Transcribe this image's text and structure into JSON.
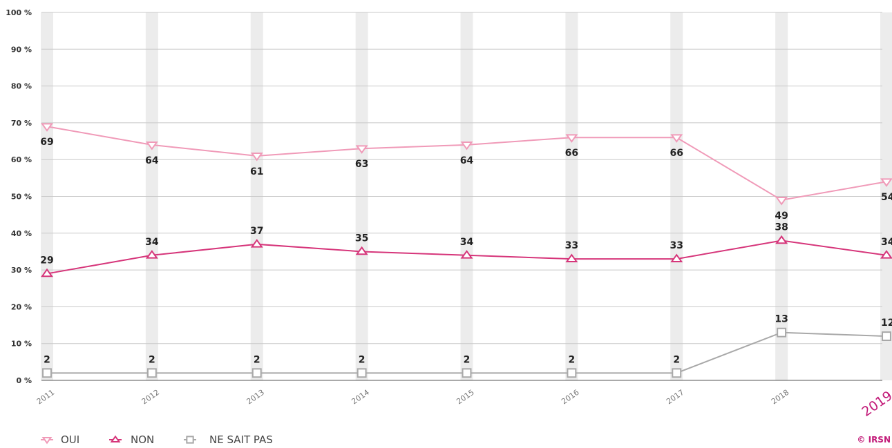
{
  "chart_data": {
    "type": "line",
    "x": [
      "2011",
      "2012",
      "2013",
      "2014",
      "2015",
      "2016",
      "2017",
      "2018",
      "2019"
    ],
    "highlight_x": "2019",
    "ylim": [
      0,
      100
    ],
    "yticks": [
      "0 %",
      "10 %",
      "20 %",
      "30 %",
      "40 %",
      "50 %",
      "60 %",
      "70 %",
      "80 %",
      "90 %",
      "100 %"
    ],
    "grid": true,
    "legend_position": "bottom-left",
    "series": [
      {
        "name": "OUI",
        "color": "#f09ab8",
        "marker": "triangle-down",
        "values": [
          69,
          64,
          61,
          63,
          64,
          66,
          66,
          49,
          54
        ],
        "labels": [
          "69",
          "64",
          "61",
          "63",
          "64",
          "66",
          "66",
          "49",
          "54"
        ],
        "label_position": "below"
      },
      {
        "name": "NON",
        "color": "#d6357a",
        "marker": "triangle-up",
        "values": [
          29,
          34,
          37,
          35,
          34,
          33,
          33,
          38,
          34
        ],
        "labels": [
          "29",
          "34",
          "37",
          "35",
          "34",
          "33",
          "33",
          "38",
          "34"
        ],
        "label_position": "above"
      },
      {
        "name": "NE SAIT PAS",
        "color": "#a8a8a8",
        "marker": "square",
        "values": [
          2,
          2,
          2,
          2,
          2,
          2,
          2,
          13,
          12
        ],
        "labels": [
          "2",
          "2",
          "2",
          "2",
          "2",
          "2",
          "2",
          "13",
          "12"
        ],
        "label_position": "above"
      }
    ]
  },
  "colors": {
    "column_band": "#ececec",
    "gridline": "#c8c8c8",
    "highlight_year": "#c21a78"
  },
  "credit": "© IRSN"
}
